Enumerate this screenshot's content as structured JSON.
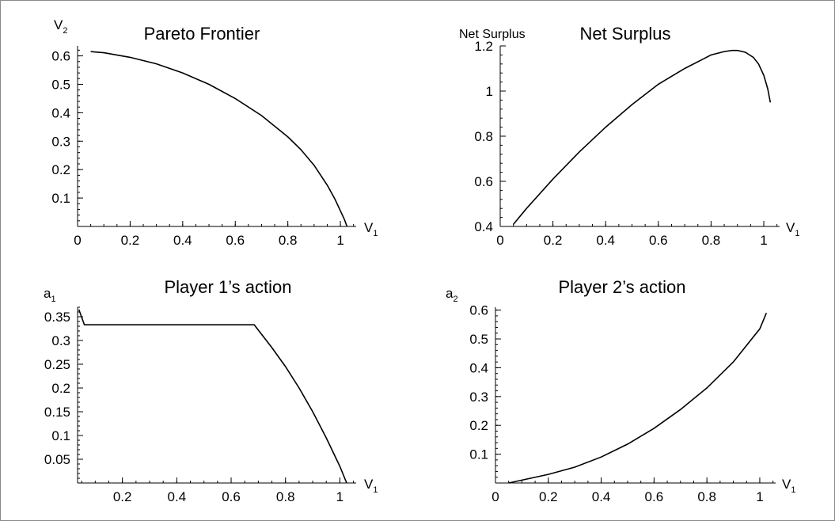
{
  "chart_data": [
    {
      "type": "line",
      "title": "Pareto Frontier",
      "xlabel": "V",
      "xlabel_sub": "1",
      "ylabel": "V",
      "ylabel_sub": "2",
      "xlim": [
        0,
        1.06
      ],
      "ylim": [
        0,
        0.635
      ],
      "xticks": [
        0,
        0.2,
        0.4,
        0.6,
        0.8,
        1
      ],
      "yticks": [
        0.1,
        0.2,
        0.3,
        0.4,
        0.5,
        0.6
      ],
      "x": [
        0.05,
        0.1,
        0.2,
        0.3,
        0.4,
        0.5,
        0.6,
        0.7,
        0.8,
        0.85,
        0.9,
        0.95,
        0.98,
        1.0,
        1.015,
        1.025
      ],
      "y": [
        0.615,
        0.611,
        0.595,
        0.572,
        0.54,
        0.5,
        0.45,
        0.39,
        0.315,
        0.27,
        0.215,
        0.145,
        0.095,
        0.055,
        0.025,
        0.0
      ]
    },
    {
      "type": "line",
      "title": "Net Surplus",
      "xlabel": "V",
      "xlabel_sub": "1",
      "ylabel": "Net Surplus",
      "ylabel_sub": "",
      "xlim": [
        0,
        1.06
      ],
      "ylim": [
        0.4,
        1.2
      ],
      "xticks": [
        0,
        0.2,
        0.4,
        0.6,
        0.8,
        1
      ],
      "yticks": [
        0.4,
        0.6,
        0.8,
        1,
        1.2
      ],
      "x": [
        0.05,
        0.1,
        0.2,
        0.3,
        0.4,
        0.5,
        0.6,
        0.7,
        0.8,
        0.85,
        0.88,
        0.9,
        0.93,
        0.96,
        0.98,
        1.0,
        1.015,
        1.025
      ],
      "y": [
        0.41,
        0.48,
        0.61,
        0.73,
        0.84,
        0.94,
        1.03,
        1.1,
        1.16,
        1.175,
        1.18,
        1.18,
        1.172,
        1.15,
        1.12,
        1.07,
        1.01,
        0.95
      ]
    },
    {
      "type": "line",
      "title": "Player 1’s action",
      "xlabel": "V",
      "xlabel_sub": "1",
      "ylabel": "a",
      "ylabel_sub": "1",
      "xlim": [
        0.035,
        1.06
      ],
      "ylim": [
        0,
        0.37
      ],
      "xticks": [
        0.2,
        0.4,
        0.6,
        0.8,
        1
      ],
      "yticks": [
        0.05,
        0.1,
        0.15,
        0.2,
        0.25,
        0.3,
        0.35
      ],
      "x": [
        0.04,
        0.06,
        0.1,
        0.2,
        0.4,
        0.6,
        0.685,
        0.75,
        0.8,
        0.85,
        0.9,
        0.95,
        1.0,
        1.025
      ],
      "y": [
        0.365,
        0.333,
        0.333,
        0.333,
        0.333,
        0.333,
        0.333,
        0.285,
        0.245,
        0.2,
        0.15,
        0.095,
        0.035,
        0.0
      ]
    },
    {
      "type": "line",
      "title": "Player 2’s action",
      "xlabel": "V",
      "xlabel_sub": "1",
      "ylabel": "a",
      "ylabel_sub": "2",
      "xlim": [
        0,
        1.06
      ],
      "ylim": [
        0,
        0.61
      ],
      "xticks": [
        0,
        0.2,
        0.4,
        0.6,
        0.8,
        1
      ],
      "yticks": [
        0.1,
        0.2,
        0.3,
        0.4,
        0.5,
        0.6
      ],
      "x": [
        0.05,
        0.1,
        0.2,
        0.3,
        0.4,
        0.5,
        0.6,
        0.7,
        0.8,
        0.9,
        1.0,
        1.025
      ],
      "y": [
        0.0,
        0.01,
        0.03,
        0.055,
        0.09,
        0.135,
        0.19,
        0.255,
        0.33,
        0.42,
        0.535,
        0.59
      ]
    }
  ]
}
